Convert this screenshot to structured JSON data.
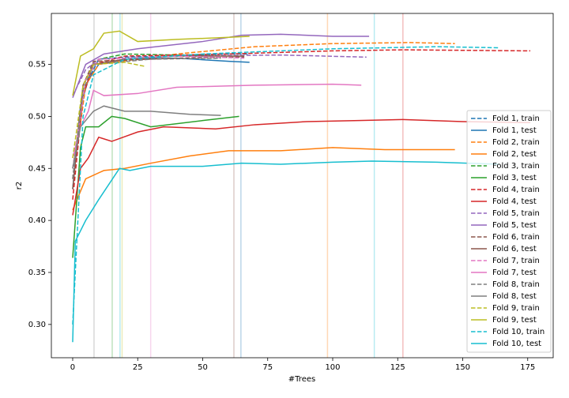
{
  "chart_data": {
    "type": "line",
    "xlabel": "#Trees",
    "ylabel": "r2",
    "xlim": [
      -8.2,
      184.8
    ],
    "ylim": [
      0.268,
      0.599
    ],
    "xticks": [
      0,
      25,
      50,
      75,
      100,
      125,
      150,
      175
    ],
    "yticks": [
      {
        "value": 0.3,
        "label": "0.30"
      },
      0.35,
      {
        "value": 0.4,
        "label": "0.40"
      },
      0.45,
      {
        "value": 0.5,
        "label": "0.50"
      },
      0.55
    ],
    "legend": "lower right",
    "vlines": [
      {
        "x": 8.2,
        "color": "#7f7f7f"
      },
      {
        "x": 15.2,
        "color": "#2ca02c"
      },
      {
        "x": 18.2,
        "color": "#17becf"
      },
      {
        "x": 19,
        "color": "#bcbd22"
      },
      {
        "x": 30,
        "color": "#e377c2"
      },
      {
        "x": 62,
        "color": "#8c564b"
      },
      {
        "x": 64.7,
        "color": "#1f77b4"
      },
      {
        "x": 98,
        "color": "#ff7f0e"
      },
      {
        "x": 116,
        "color": "#17becf"
      },
      {
        "x": 127,
        "color": "#d62728"
      }
    ],
    "series": [
      {
        "name": "Fold 1, train",
        "color": "#1f77b4",
        "linestyle": "dashed",
        "x": [
          0,
          5,
          10,
          20,
          40,
          60,
          68
        ],
        "values": [
          0.44,
          0.53,
          0.555,
          0.557,
          0.558,
          0.56,
          0.56
        ]
      },
      {
        "name": "Fold 1, test",
        "color": "#1f77b4",
        "linestyle": "solid",
        "x": [
          0,
          3,
          6,
          10,
          20,
          40,
          60,
          68
        ],
        "values": [
          0.43,
          0.51,
          0.535,
          0.55,
          0.555,
          0.556,
          0.553,
          0.552
        ]
      },
      {
        "name": "Fold 2, train",
        "color": "#ff7f0e",
        "linestyle": "dashed",
        "x": [
          0,
          5,
          10,
          40,
          70,
          100,
          130,
          147
        ],
        "values": [
          0.44,
          0.53,
          0.55,
          0.56,
          0.567,
          0.57,
          0.571,
          0.57
        ]
      },
      {
        "name": "Fold 2, test",
        "color": "#ff7f0e",
        "linestyle": "solid",
        "x": [
          0,
          5,
          12,
          20,
          30,
          45,
          60,
          80,
          100,
          120,
          147
        ],
        "values": [
          0.41,
          0.44,
          0.448,
          0.45,
          0.455,
          0.462,
          0.467,
          0.467,
          0.47,
          0.468,
          0.468
        ]
      },
      {
        "name": "Fold 3, train",
        "color": "#2ca02c",
        "linestyle": "dashed",
        "x": [
          0,
          5,
          10,
          20,
          40,
          64
        ],
        "values": [
          0.45,
          0.535,
          0.555,
          0.56,
          0.559,
          0.558
        ]
      },
      {
        "name": "Fold 3, test",
        "color": "#2ca02c",
        "linestyle": "solid",
        "x": [
          0,
          3,
          5,
          10,
          15,
          20,
          30,
          50,
          64
        ],
        "values": [
          0.364,
          0.47,
          0.49,
          0.49,
          0.5,
          0.498,
          0.49,
          0.496,
          0.5
        ]
      },
      {
        "name": "Fold 4, train",
        "color": "#d62728",
        "linestyle": "dashed",
        "x": [
          0,
          4,
          8,
          20,
          60,
          100,
          127,
          176
        ],
        "values": [
          0.42,
          0.52,
          0.55,
          0.558,
          0.56,
          0.563,
          0.564,
          0.563
        ]
      },
      {
        "name": "Fold 4, test",
        "color": "#d62728",
        "linestyle": "solid",
        "x": [
          0,
          3,
          6,
          10,
          15,
          25,
          35,
          55,
          70,
          90,
          110,
          127,
          150,
          176
        ],
        "values": [
          0.405,
          0.45,
          0.46,
          0.48,
          0.476,
          0.485,
          0.49,
          0.488,
          0.492,
          0.495,
          0.496,
          0.497,
          0.495,
          0.494
        ]
      },
      {
        "name": "Fold 5, train",
        "color": "#9467bd",
        "linestyle": "dashed",
        "x": [
          0,
          5,
          10,
          40,
          80,
          113
        ],
        "values": [
          0.52,
          0.545,
          0.555,
          0.558,
          0.559,
          0.557
        ]
      },
      {
        "name": "Fold 5, test",
        "color": "#9467bd",
        "linestyle": "solid",
        "x": [
          0,
          5,
          12,
          25,
          50,
          65,
          80,
          100,
          114
        ],
        "values": [
          0.518,
          0.55,
          0.56,
          0.565,
          0.572,
          0.578,
          0.579,
          0.577,
          0.577
        ]
      },
      {
        "name": "Fold 6, train",
        "color": "#8c564b",
        "linestyle": "dashed",
        "x": [
          0,
          4,
          8,
          40,
          66
        ],
        "values": [
          0.44,
          0.53,
          0.553,
          0.556,
          0.557
        ]
      },
      {
        "name": "Fold 6, test",
        "color": "#8c564b",
        "linestyle": "solid",
        "x": [
          0,
          4,
          8,
          20,
          40,
          66
        ],
        "values": [
          0.43,
          0.53,
          0.55,
          0.555,
          0.558,
          0.558
        ]
      },
      {
        "name": "Fold 7, train",
        "color": "#e377c2",
        "linestyle": "dashed",
        "x": [
          0,
          5,
          10,
          40,
          66
        ],
        "values": [
          0.45,
          0.535,
          0.555,
          0.558,
          0.556
        ]
      },
      {
        "name": "Fold 7, test",
        "color": "#e377c2",
        "linestyle": "solid",
        "x": [
          0,
          3,
          6,
          8,
          12,
          25,
          40,
          70,
          100,
          111
        ],
        "values": [
          0.46,
          0.49,
          0.505,
          0.525,
          0.52,
          0.522,
          0.528,
          0.53,
          0.531,
          0.53
        ]
      },
      {
        "name": "Fold 8, train",
        "color": "#7f7f7f",
        "linestyle": "dashed",
        "x": [
          0,
          4,
          8,
          30,
          57
        ],
        "values": [
          0.44,
          0.525,
          0.55,
          0.555,
          0.556
        ]
      },
      {
        "name": "Fold 8, test",
        "color": "#7f7f7f",
        "linestyle": "solid",
        "x": [
          0,
          3,
          8,
          12,
          20,
          30,
          45,
          57
        ],
        "values": [
          0.45,
          0.49,
          0.505,
          0.51,
          0.505,
          0.505,
          0.502,
          0.501
        ]
      },
      {
        "name": "Fold 9, train",
        "color": "#bcbd22",
        "linestyle": "dashed",
        "x": [
          0,
          4,
          8,
          20,
          28
        ],
        "values": [
          0.46,
          0.53,
          0.55,
          0.552,
          0.548
        ]
      },
      {
        "name": "Fold 9, test",
        "color": "#bcbd22",
        "linestyle": "solid",
        "x": [
          0,
          3,
          8,
          12,
          18,
          25,
          40,
          60,
          68
        ],
        "values": [
          0.52,
          0.558,
          0.565,
          0.58,
          0.582,
          0.572,
          0.574,
          0.576,
          0.577
        ]
      },
      {
        "name": "Fold 10, train",
        "color": "#17becf",
        "linestyle": "dashed",
        "x": [
          0,
          4,
          8,
          20,
          50,
          100,
          140,
          164
        ],
        "values": [
          0.3,
          0.5,
          0.54,
          0.555,
          0.56,
          0.565,
          0.567,
          0.566
        ]
      },
      {
        "name": "Fold 10, test",
        "color": "#17becf",
        "linestyle": "solid",
        "x": [
          0,
          1,
          5,
          10,
          18,
          22,
          30,
          50,
          65,
          80,
          100,
          115,
          140,
          164
        ],
        "values": [
          0.283,
          0.38,
          0.4,
          0.42,
          0.45,
          0.448,
          0.452,
          0.452,
          0.455,
          0.454,
          0.456,
          0.457,
          0.456,
          0.454
        ]
      }
    ]
  }
}
